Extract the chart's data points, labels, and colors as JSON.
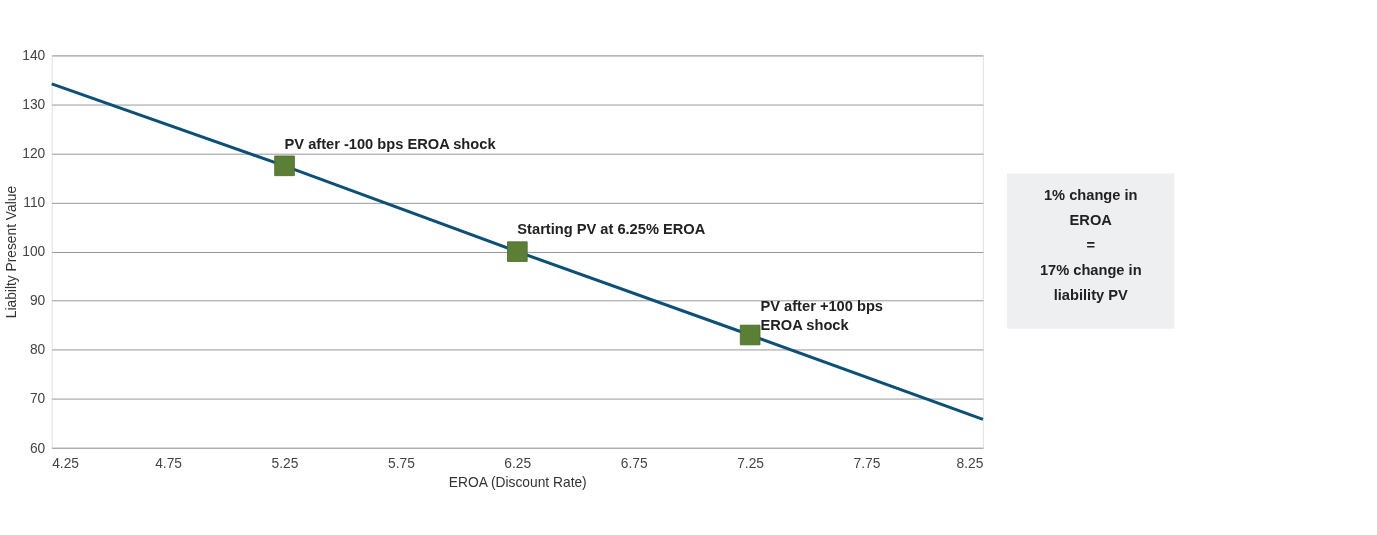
{
  "chart_data": {
    "type": "line",
    "xlabel": "EROA (Discount Rate)",
    "ylabel": "Liabilty Present Value",
    "x": [
      4.25,
      5.25,
      6.25,
      7.25,
      8.25
    ],
    "series": [
      {
        "color": "#0b5079",
        "values": [
          134.2,
          117.5,
          100,
          83,
          65.8
        ],
        "marker": "none"
      },
      {
        "type": "scatter",
        "color": "#5a7f35",
        "x": [
          5.25,
          6.25,
          7.25
        ],
        "values": [
          117.5,
          100,
          83
        ],
        "marker": "square"
      }
    ],
    "xlim": [
      4.25,
      8.25
    ],
    "xticks": [
      4.25,
      4.75,
      5.25,
      5.75,
      6.25,
      6.75,
      7.25,
      7.75,
      8.25
    ],
    "ylim": [
      60,
      140
    ],
    "yticks": [
      60,
      70,
      80,
      90,
      100,
      110,
      120,
      130,
      140
    ],
    "grid": "y",
    "annotations": [
      {
        "text": "PV after -100 bps EROA shock",
        "x": 5.25,
        "y": 117.5
      },
      {
        "text": "Starting PV at 6.25% EROA",
        "x": 6.25,
        "y": 100
      },
      {
        "text": "PV after +100 bps\nEROA shock",
        "x": 7.25,
        "y": 83
      },
      "1% change in\nEROA\n=\n17% change in\nliability PV"
    ]
  }
}
